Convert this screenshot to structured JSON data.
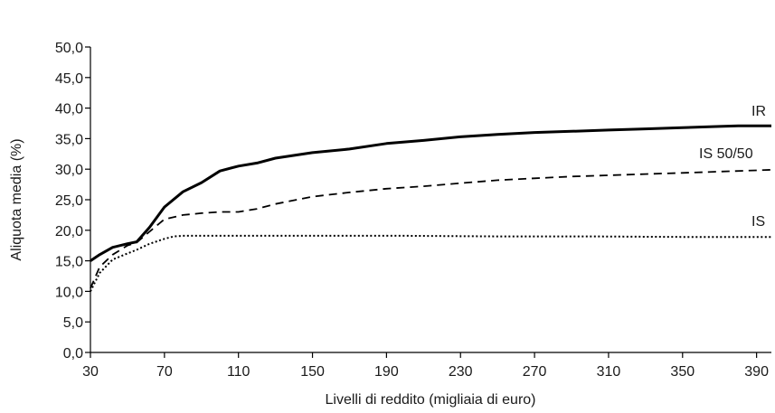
{
  "chart_data": {
    "type": "line",
    "title": "",
    "xlabel": "Livelli di reddito (migliaia di euro)",
    "ylabel": "Aliquota media (%)",
    "xlim": [
      30,
      398
    ],
    "ylim": [
      0,
      50
    ],
    "xticks": [
      "30",
      "70",
      "110",
      "150",
      "190",
      "230",
      "270",
      "310",
      "350",
      "390"
    ],
    "yticks": [
      "0,0",
      "5,0",
      "10,0",
      "15,0",
      "20,0",
      "25,0",
      "30,0",
      "35,0",
      "40,0",
      "45,0",
      "50,0"
    ],
    "grid": false,
    "legend": "inline-right",
    "series": [
      {
        "name": "IR",
        "style": "solid",
        "x": [
          30,
          35,
          42,
          50,
          55,
          62,
          70,
          80,
          90,
          100,
          110,
          120,
          130,
          150,
          170,
          190,
          210,
          230,
          250,
          270,
          290,
          310,
          330,
          350,
          370,
          380,
          398
        ],
        "y": [
          15.0,
          16.0,
          17.2,
          17.8,
          18.1,
          20.5,
          23.8,
          26.3,
          27.8,
          29.7,
          30.5,
          31.0,
          31.8,
          32.7,
          33.3,
          34.2,
          34.7,
          35.3,
          35.7,
          36.0,
          36.2,
          36.4,
          36.6,
          36.8,
          37.0,
          37.1,
          37.1
        ]
      },
      {
        "name": "IS 50/50",
        "style": "dashed",
        "x": [
          30,
          35,
          42,
          50,
          55,
          62,
          70,
          80,
          90,
          100,
          110,
          120,
          130,
          150,
          170,
          190,
          210,
          230,
          250,
          270,
          290,
          310,
          330,
          350,
          370,
          398
        ],
        "y": [
          10.5,
          14.0,
          16.0,
          17.5,
          18.0,
          19.8,
          21.8,
          22.5,
          22.8,
          23.0,
          23.0,
          23.5,
          24.3,
          25.5,
          26.2,
          26.8,
          27.2,
          27.7,
          28.2,
          28.5,
          28.8,
          29.0,
          29.2,
          29.4,
          29.6,
          29.9
        ]
      },
      {
        "name": "IS",
        "style": "dotted",
        "x": [
          30,
          35,
          42,
          50,
          55,
          62,
          70,
          75,
          80,
          90,
          100,
          130,
          160,
          200,
          250,
          300,
          350,
          398
        ],
        "y": [
          10.0,
          13.0,
          15.2,
          16.2,
          16.8,
          17.8,
          18.6,
          19.0,
          19.1,
          19.1,
          19.1,
          19.1,
          19.1,
          19.1,
          19.0,
          19.0,
          18.9,
          18.9
        ]
      }
    ]
  }
}
